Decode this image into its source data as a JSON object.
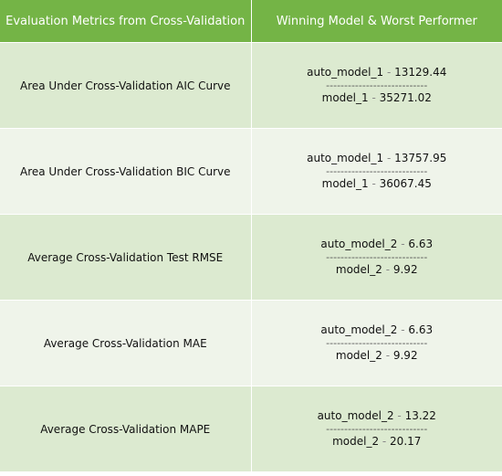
{
  "header": {
    "col1": "Evaluation Metrics from Cross-Validation",
    "col2": "Winning Model & Worst Performer"
  },
  "separator": " - ",
  "divider": "----------------------------",
  "rows": [
    {
      "metric": "Area Under Cross-Validation AIC Curve",
      "best_model": "auto_model_1",
      "best_value": "13129.44",
      "worst_model": "model_1",
      "worst_value": "35271.02"
    },
    {
      "metric": "Area Under Cross-Validation BIC Curve",
      "best_model": "auto_model_1",
      "best_value": "13757.95",
      "worst_model": "model_1",
      "worst_value": "36067.45"
    },
    {
      "metric": "Average Cross-Validation Test RMSE",
      "best_model": "auto_model_2",
      "best_value": "6.63",
      "worst_model": "model_2",
      "worst_value": "9.92"
    },
    {
      "metric": "Average Cross-Validation MAE",
      "best_model": "auto_model_2",
      "best_value": "6.63",
      "worst_model": "model_2",
      "worst_value": "9.92"
    },
    {
      "metric": "Average Cross-Validation MAPE",
      "best_model": "auto_model_2",
      "best_value": "13.22",
      "worst_model": "model_2",
      "worst_value": "20.17"
    }
  ]
}
